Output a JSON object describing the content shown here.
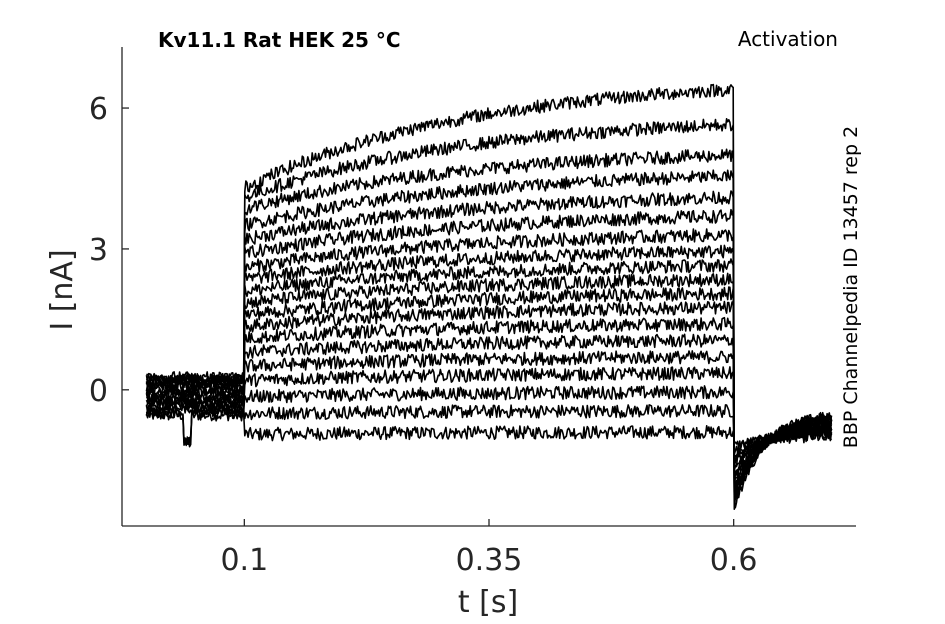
{
  "chart_data": {
    "type": "line",
    "title": "Kv11.1  Rat  HEK  25 °C",
    "protocol_label": "Activation",
    "side_label": "BBP Channelpedia ID 13457 rep 2",
    "xlabel": "t [s]",
    "ylabel": "I [nA]",
    "xlim": [
      -0.025,
      0.725
    ],
    "ylim": [
      -2.9,
      7.3
    ],
    "xticks": [
      0.1,
      0.35,
      0.6
    ],
    "xtick_labels": [
      "0.1",
      "0.35",
      "0.6"
    ],
    "yticks": [
      0,
      3,
      6
    ],
    "ytick_labels": [
      "0",
      "3",
      "6"
    ],
    "grid": false,
    "color": "#000000",
    "protocol": {
      "t_start": 0.0,
      "step_on": 0.1,
      "step_off": 0.6,
      "t_end": 0.7
    },
    "series": [
      {
        "baseline": -0.55,
        "step_start": -0.95,
        "step_end": -0.9,
        "tail_peak": -1.2,
        "tail_end": -1.0
      },
      {
        "baseline": -0.5,
        "step_start": -0.5,
        "step_end": -0.45,
        "tail_peak": -1.3,
        "tail_end": -0.95
      },
      {
        "baseline": -0.45,
        "step_start": -0.15,
        "step_end": -0.05,
        "tail_peak": -1.4,
        "tail_end": -0.9
      },
      {
        "baseline": -0.4,
        "step_start": 0.2,
        "step_end": 0.35,
        "tail_peak": -1.5,
        "tail_end": -0.85
      },
      {
        "baseline": -0.35,
        "step_start": 0.5,
        "step_end": 0.7,
        "tail_peak": -1.6,
        "tail_end": -0.85
      },
      {
        "baseline": -0.3,
        "step_start": 0.8,
        "step_end": 1.05,
        "tail_peak": -1.7,
        "tail_end": -0.8
      },
      {
        "baseline": -0.25,
        "step_start": 1.1,
        "step_end": 1.4,
        "tail_peak": -1.8,
        "tail_end": -0.8
      },
      {
        "baseline": -0.2,
        "step_start": 1.35,
        "step_end": 1.75,
        "tail_peak": -1.9,
        "tail_end": -0.75
      },
      {
        "baseline": -0.15,
        "step_start": 1.6,
        "step_end": 2.05,
        "tail_peak": -2.0,
        "tail_end": -0.75
      },
      {
        "baseline": -0.1,
        "step_start": 1.85,
        "step_end": 2.35,
        "tail_peak": -2.1,
        "tail_end": -0.7
      },
      {
        "baseline": -0.05,
        "step_start": 2.1,
        "step_end": 2.65,
        "tail_peak": -2.15,
        "tail_end": -0.7
      },
      {
        "baseline": 0.0,
        "step_start": 2.35,
        "step_end": 2.95,
        "tail_peak": -2.2,
        "tail_end": -0.65
      },
      {
        "baseline": 0.05,
        "step_start": 2.6,
        "step_end": 3.3,
        "tail_peak": -2.25,
        "tail_end": -0.65
      },
      {
        "baseline": 0.1,
        "step_start": 2.9,
        "step_end": 3.7,
        "tail_peak": -2.3,
        "tail_end": -0.6
      },
      {
        "baseline": 0.15,
        "step_start": 3.2,
        "step_end": 4.1,
        "tail_peak": -2.35,
        "tail_end": -0.6
      },
      {
        "baseline": 0.2,
        "step_start": 3.5,
        "step_end": 4.55,
        "tail_peak": -2.4,
        "tail_end": -0.55
      },
      {
        "baseline": 0.22,
        "step_start": 3.85,
        "step_end": 5.0,
        "tail_peak": -2.45,
        "tail_end": -0.55
      },
      {
        "baseline": 0.25,
        "step_start": 4.1,
        "step_end": 5.65,
        "tail_peak": -2.5,
        "tail_end": -0.5
      },
      {
        "baseline": 0.28,
        "step_start": 4.3,
        "step_end": 6.4,
        "tail_peak": -2.6,
        "tail_end": -0.5
      }
    ]
  }
}
